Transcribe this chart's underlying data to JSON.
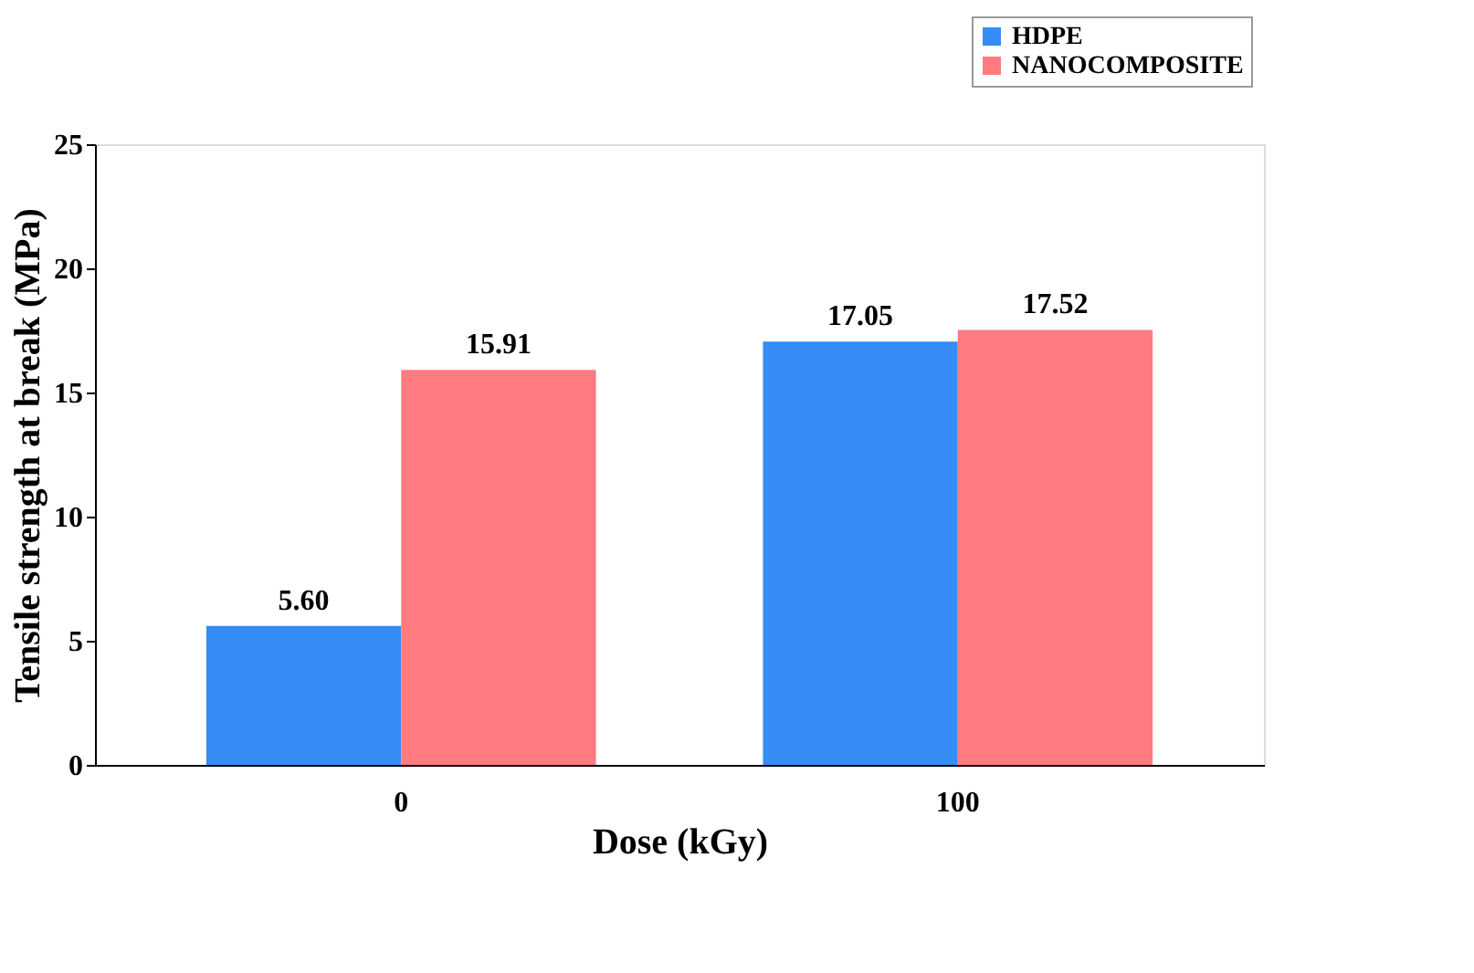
{
  "chart_data": {
    "type": "bar",
    "xlabel": "Dose (kGy)",
    "ylabel": "Tensile strength at break (MPa)",
    "categories": [
      "0",
      "100"
    ],
    "series": [
      {
        "name": "HDPE",
        "color": "#368cf5",
        "values": [
          5.6,
          17.05
        ],
        "value_labels": [
          "5.60",
          "17.05"
        ]
      },
      {
        "name": "NANOCOMPOSITE",
        "color": "#ff7b7f",
        "values": [
          15.91,
          17.52
        ],
        "value_labels": [
          "15.91",
          "17.52"
        ]
      }
    ],
    "ylim": [
      0,
      25
    ],
    "yticks": [
      0,
      5,
      10,
      15,
      20,
      25
    ],
    "grid": false,
    "legend": "top right"
  }
}
